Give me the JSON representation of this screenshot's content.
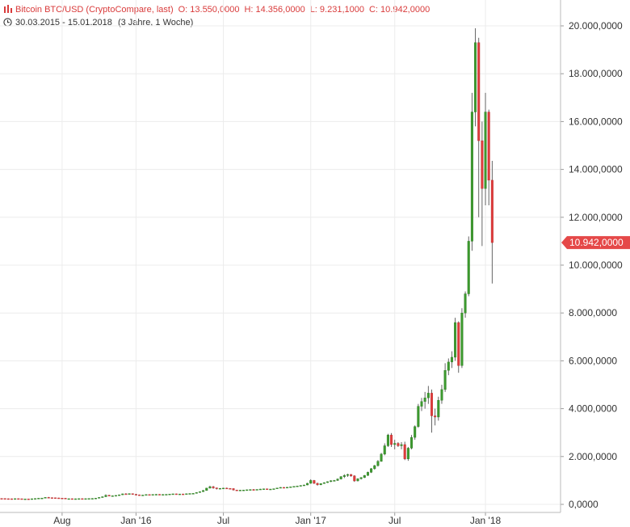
{
  "header": {
    "title": "Bitcoin BTC/USD (CryptoCompare, last)",
    "open": "O: 13.550,0000",
    "high": "H: 14.356,0000",
    "low": "L: 9.231,1000",
    "close": "C: 10.942,0000",
    "range": "30.03.2015 - 15.01.2018",
    "period": "(3 Jahre, 1 Woche)",
    "chart_icon": "bar-chart-icon",
    "clock_icon": "clock-icon"
  },
  "colors": {
    "up": "#3c9a2e",
    "down": "#e03c3c",
    "grid": "#ececec",
    "axis_text": "#333333",
    "last_price_bg": "#e54848",
    "header_text": "#d93b3b"
  },
  "chart_data": {
    "type": "candlestick",
    "title": "Bitcoin BTC/USD (CryptoCompare, last)",
    "interval": "weekly",
    "ylim": [
      0,
      20500
    ],
    "y_ticks": [
      0,
      2000,
      4000,
      6000,
      8000,
      10000,
      12000,
      14000,
      16000,
      18000,
      20000
    ],
    "y_tick_labels": [
      "0,0000",
      "2.000,0000",
      "4.000,0000",
      "6.000,0000",
      "8.000,0000",
      "10.000,0000",
      "12.000,0000",
      "14.000,0000",
      "16.000,0000",
      "18.000,0000",
      "20.000,0000"
    ],
    "x_ticks": [
      {
        "label": "Aug",
        "index": 18
      },
      {
        "label": "Jan '16",
        "index": 40
      },
      {
        "label": "Jul",
        "index": 66
      },
      {
        "label": "Jan '17",
        "index": 92
      },
      {
        "label": "Jul",
        "index": 117
      },
      {
        "label": "Jan '18",
        "index": 144
      }
    ],
    "grid": true,
    "last_price": 10942,
    "last_price_label": "10.942,0000",
    "candles": [
      [
        248,
        255,
        236,
        244
      ],
      [
        244,
        250,
        233,
        238
      ],
      [
        238,
        245,
        228,
        236
      ],
      [
        236,
        242,
        226,
        232
      ],
      [
        232,
        244,
        228,
        240
      ],
      [
        240,
        248,
        232,
        236
      ],
      [
        236,
        242,
        224,
        228
      ],
      [
        228,
        236,
        220,
        230
      ],
      [
        230,
        238,
        222,
        226
      ],
      [
        226,
        240,
        222,
        236
      ],
      [
        236,
        250,
        232,
        246
      ],
      [
        246,
        262,
        240,
        258
      ],
      [
        258,
        272,
        250,
        264
      ],
      [
        264,
        300,
        258,
        292
      ],
      [
        292,
        312,
        270,
        282
      ],
      [
        282,
        290,
        270,
        276
      ],
      [
        276,
        282,
        265,
        270
      ],
      [
        270,
        276,
        255,
        262
      ],
      [
        262,
        270,
        250,
        258
      ],
      [
        258,
        264,
        225,
        235
      ],
      [
        235,
        242,
        225,
        238
      ],
      [
        238,
        245,
        228,
        232
      ],
      [
        232,
        240,
        226,
        236
      ],
      [
        236,
        245,
        230,
        240
      ],
      [
        240,
        248,
        232,
        236
      ],
      [
        236,
        244,
        230,
        240
      ],
      [
        240,
        248,
        235,
        244
      ],
      [
        244,
        255,
        238,
        250
      ],
      [
        250,
        265,
        245,
        260
      ],
      [
        260,
        300,
        255,
        290
      ],
      [
        290,
        330,
        280,
        320
      ],
      [
        320,
        420,
        310,
        380
      ],
      [
        380,
        400,
        340,
        350
      ],
      [
        350,
        370,
        330,
        360
      ],
      [
        360,
        380,
        350,
        375
      ],
      [
        375,
        410,
        365,
        400
      ],
      [
        400,
        450,
        390,
        440
      ],
      [
        440,
        470,
        420,
        430
      ],
      [
        430,
        460,
        415,
        450
      ],
      [
        450,
        455,
        400,
        420
      ],
      [
        420,
        440,
        380,
        400
      ],
      [
        400,
        410,
        370,
        380
      ],
      [
        380,
        395,
        365,
        390
      ],
      [
        390,
        420,
        385,
        410
      ],
      [
        410,
        420,
        395,
        400
      ],
      [
        400,
        420,
        390,
        415
      ],
      [
        415,
        430,
        405,
        420
      ],
      [
        420,
        425,
        400,
        410
      ],
      [
        410,
        425,
        400,
        415
      ],
      [
        415,
        425,
        405,
        420
      ],
      [
        420,
        440,
        410,
        430
      ],
      [
        430,
        445,
        420,
        440
      ],
      [
        440,
        450,
        425,
        430
      ],
      [
        430,
        440,
        420,
        435
      ],
      [
        435,
        445,
        425,
        430
      ],
      [
        430,
        450,
        425,
        445
      ],
      [
        445,
        460,
        440,
        455
      ],
      [
        455,
        470,
        445,
        460
      ],
      [
        460,
        500,
        455,
        495
      ],
      [
        495,
        540,
        490,
        530
      ],
      [
        530,
        600,
        520,
        580
      ],
      [
        580,
        690,
        570,
        680
      ],
      [
        680,
        780,
        660,
        740
      ],
      [
        740,
        770,
        650,
        690
      ],
      [
        690,
        700,
        620,
        660
      ],
      [
        660,
        680,
        640,
        670
      ],
      [
        670,
        690,
        655,
        680
      ],
      [
        680,
        700,
        660,
        665
      ],
      [
        665,
        680,
        650,
        660
      ],
      [
        660,
        670,
        580,
        600
      ],
      [
        600,
        610,
        570,
        580
      ],
      [
        580,
        600,
        570,
        595
      ],
      [
        595,
        610,
        585,
        600
      ],
      [
        600,
        620,
        590,
        610
      ],
      [
        610,
        630,
        600,
        620
      ],
      [
        620,
        640,
        600,
        615
      ],
      [
        615,
        630,
        600,
        625
      ],
      [
        625,
        650,
        615,
        640
      ],
      [
        640,
        660,
        630,
        650
      ],
      [
        650,
        660,
        620,
        630
      ],
      [
        630,
        645,
        610,
        640
      ],
      [
        640,
        660,
        630,
        655
      ],
      [
        655,
        690,
        645,
        685
      ],
      [
        685,
        720,
        675,
        710
      ],
      [
        710,
        720,
        690,
        700
      ],
      [
        700,
        720,
        690,
        715
      ],
      [
        715,
        740,
        705,
        735
      ],
      [
        735,
        760,
        725,
        750
      ],
      [
        750,
        780,
        740,
        770
      ],
      [
        770,
        800,
        760,
        790
      ],
      [
        790,
        820,
        775,
        810
      ],
      [
        810,
        900,
        800,
        880
      ],
      [
        880,
        1050,
        860,
        1000
      ],
      [
        1000,
        1020,
        850,
        880
      ],
      [
        880,
        910,
        780,
        820
      ],
      [
        820,
        880,
        800,
        870
      ],
      [
        870,
        920,
        860,
        910
      ],
      [
        910,
        960,
        900,
        950
      ],
      [
        950,
        1010,
        930,
        990
      ],
      [
        990,
        1020,
        960,
        1000
      ],
      [
        1000,
        1080,
        980,
        1060
      ],
      [
        1060,
        1180,
        1040,
        1160
      ],
      [
        1160,
        1260,
        1100,
        1210
      ],
      [
        1210,
        1280,
        1150,
        1250
      ],
      [
        1250,
        1270,
        1150,
        1190
      ],
      [
        1190,
        1220,
        940,
        980
      ],
      [
        980,
        1090,
        960,
        1070
      ],
      [
        1070,
        1140,
        1040,
        1120
      ],
      [
        1120,
        1230,
        1100,
        1210
      ],
      [
        1210,
        1370,
        1190,
        1340
      ],
      [
        1340,
        1520,
        1310,
        1490
      ],
      [
        1490,
        1650,
        1450,
        1620
      ],
      [
        1620,
        1850,
        1580,
        1800
      ],
      [
        1800,
        2150,
        1780,
        2100
      ],
      [
        2100,
        2550,
        2050,
        2450
      ],
      [
        2450,
        2950,
        2400,
        2900
      ],
      [
        2900,
        2980,
        2400,
        2500
      ],
      [
        2500,
        2700,
        2300,
        2550
      ],
      [
        2550,
        2600,
        2400,
        2450
      ],
      [
        2450,
        2600,
        2300,
        2500
      ],
      [
        2500,
        2620,
        1850,
        1900
      ],
      [
        1900,
        2400,
        1820,
        2350
      ],
      [
        2350,
        2900,
        2300,
        2800
      ],
      [
        2800,
        3300,
        2700,
        3250
      ],
      [
        3250,
        4200,
        3200,
        4100
      ],
      [
        4100,
        4450,
        3900,
        4300
      ],
      [
        4300,
        4700,
        4000,
        4450
      ],
      [
        4450,
        4950,
        4200,
        4650
      ],
      [
        4650,
        4800,
        3000,
        3700
      ],
      [
        3700,
        4000,
        3300,
        3650
      ],
      [
        3650,
        4500,
        3500,
        4350
      ],
      [
        4350,
        5000,
        4200,
        4800
      ],
      [
        4800,
        5900,
        4700,
        5600
      ],
      [
        5600,
        6100,
        5400,
        5950
      ],
      [
        5950,
        6400,
        5700,
        6150
      ],
      [
        6150,
        7800,
        6000,
        7600
      ],
      [
        7600,
        7650,
        5500,
        5800
      ],
      [
        5800,
        8200,
        5700,
        8000
      ],
      [
        8000,
        8900,
        7800,
        8800
      ],
      [
        8800,
        11200,
        8700,
        11000
      ],
      [
        11000,
        17200,
        10600,
        16400
      ],
      [
        16400,
        19900,
        15800,
        19300
      ],
      [
        19300,
        19500,
        12000,
        15200
      ],
      [
        15200,
        16000,
        10800,
        13200
      ],
      [
        13200,
        17200,
        12500,
        16400
      ],
      [
        16400,
        16500,
        12500,
        13550
      ],
      [
        13550,
        14356,
        9231,
        10942
      ]
    ]
  }
}
